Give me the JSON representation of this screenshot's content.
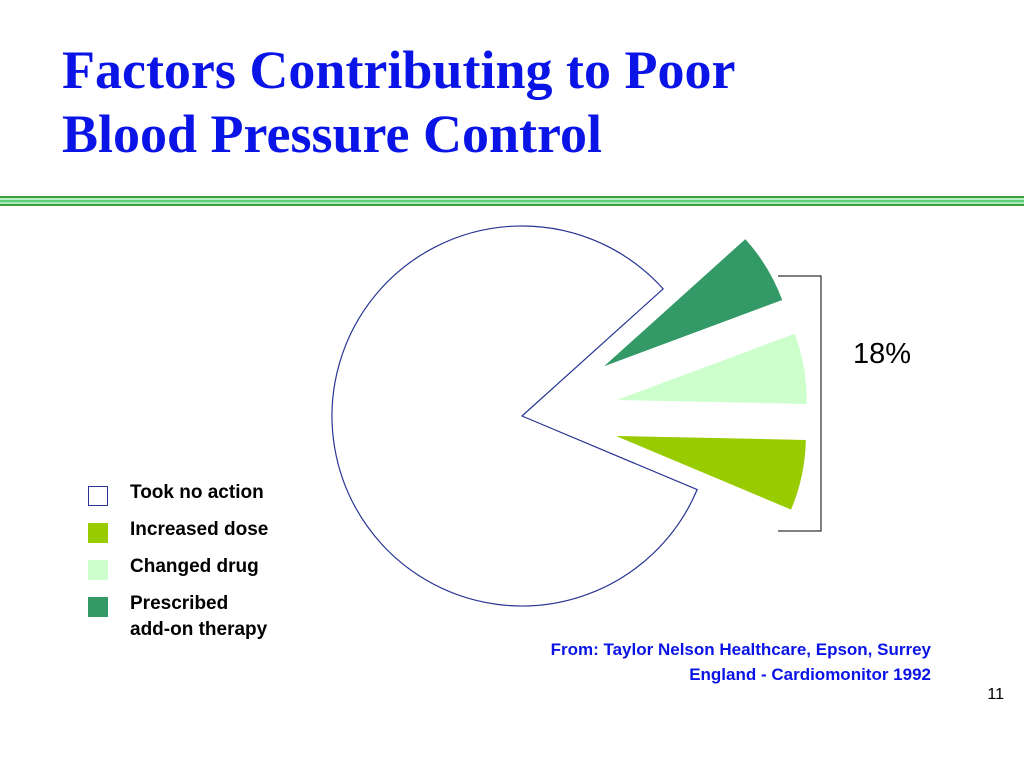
{
  "title": {
    "line1": "Factors Contributing to Poor",
    "line2": "Blood Pressure Control"
  },
  "chart_data": {
    "type": "pie",
    "labels": [
      "Took no action",
      "Increased dose",
      "Changed drug",
      "Prescribed add-on therapy"
    ],
    "values": [
      82,
      6,
      6,
      6
    ],
    "colors": [
      "#ffffff",
      "#99cc00",
      "#ccffcc",
      "#339966"
    ],
    "exploded": [
      false,
      true,
      true,
      true
    ],
    "bracket_label": "18%",
    "legend_position": "left"
  },
  "legend": [
    {
      "line1": "Took no action",
      "line2": "",
      "color": "#ffffff",
      "border": "#283593"
    },
    {
      "line1": "Increased dose",
      "line2": "",
      "color": "#99cc00",
      "border": "#99cc00"
    },
    {
      "line1": "Changed drug",
      "line2": "",
      "color": "#ccffcc",
      "border": "#ccffcc"
    },
    {
      "line1": "Prescribed",
      "line2": "add-on therapy",
      "color": "#339966",
      "border": "#339966"
    }
  ],
  "source": {
    "line1": "From:  Taylor Nelson Healthcare, Epson, Surrey",
    "line2": "England - Cardiomonitor 1992"
  },
  "page_number": "11"
}
